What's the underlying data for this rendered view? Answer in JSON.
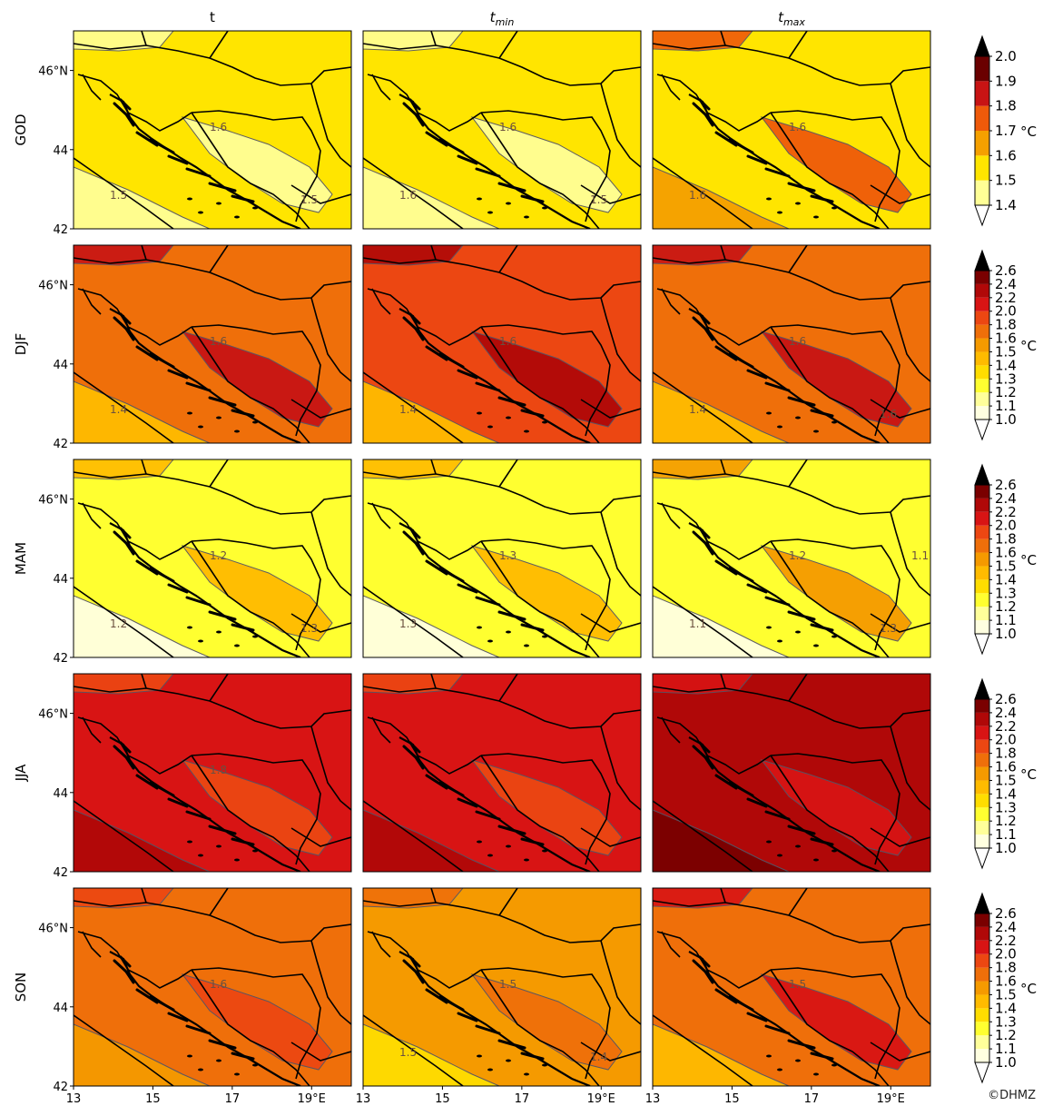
{
  "columns": [
    {
      "id": "t",
      "label": "t",
      "sub": ""
    },
    {
      "id": "tmin",
      "label": "t",
      "sub": "min"
    },
    {
      "id": "tmax",
      "label": "t",
      "sub": "max"
    }
  ],
  "rows": [
    {
      "id": "GOD",
      "label": "GOD",
      "colorbar": [
        "1.4",
        "1.5",
        "1.6",
        "1.7",
        "1.8",
        "1.9",
        "2.0"
      ]
    },
    {
      "id": "DJF",
      "label": "DJF",
      "colorbar": [
        "1.0",
        "1.1",
        "1.2",
        "1.3",
        "1.4",
        "1.5",
        "1.6",
        "1.8",
        "2.0",
        "2.2",
        "2.4",
        "2.6"
      ]
    },
    {
      "id": "MAM",
      "label": "MAM",
      "colorbar": [
        "1.0",
        "1.1",
        "1.2",
        "1.3",
        "1.4",
        "1.5",
        "1.6",
        "1.8",
        "2.0",
        "2.2",
        "2.4",
        "2.6"
      ]
    },
    {
      "id": "JJA",
      "label": "JJA",
      "colorbar": [
        "1.0",
        "1.1",
        "1.2",
        "1.3",
        "1.4",
        "1.5",
        "1.6",
        "1.8",
        "2.0",
        "2.2",
        "2.4",
        "2.6"
      ]
    },
    {
      "id": "SON",
      "label": "SON",
      "colorbar": [
        "1.0",
        "1.1",
        "1.2",
        "1.3",
        "1.4",
        "1.5",
        "1.6",
        "1.8",
        "2.0",
        "2.2",
        "2.4",
        "2.6"
      ]
    }
  ],
  "colorbar_colors": {
    "GOD": [
      "#ffff96",
      "#ffe500",
      "#f5a000",
      "#ef5a0a",
      "#c81414",
      "#6a0000"
    ],
    "DJF": [
      "#ffffe0",
      "#ffff9a",
      "#ffff30",
      "#ffdd00",
      "#ffbb00",
      "#f59a00",
      "#ef6f0a",
      "#ec4712",
      "#d81414",
      "#b00808",
      "#7a0000"
    ]
  },
  "unit": "°C",
  "lat_ticks": [
    "46°N",
    "44",
    "42"
  ],
  "lon_ticks": [
    "13",
    "15",
    "17",
    "19°E"
  ],
  "map_fill_colors": {
    "GOD": [
      "#ffe500",
      "#ffe500",
      "#ffe500"
    ],
    "DJF": [
      "#ef6f0a",
      "#ec4712",
      "#ef6f0a"
    ],
    "MAM": [
      "#ffff30",
      "#ffff30",
      "#ffff30"
    ],
    "JJA": [
      "#d81414",
      "#d81414",
      "#b00808"
    ],
    "SON": [
      "#ef6f0a",
      "#f59a00",
      "#ef6f0a"
    ]
  },
  "contour_labels": {
    "GOD": [
      [
        "1.6",
        "1.5",
        "1.5"
      ],
      [
        "1.6",
        "1.6",
        "1.5"
      ],
      [
        "1.6",
        "1.6"
      ]
    ],
    "DJF": [
      [
        "1.6",
        "1.4"
      ],
      [
        "1.6",
        "1.4"
      ],
      [
        "1.6",
        "1.4",
        "1.6"
      ]
    ],
    "MAM": [
      [
        "1.2",
        "1.2",
        "1.3"
      ],
      [
        "1.3",
        "1.3"
      ],
      [
        "1.2",
        "1.1",
        "1.3",
        "1.1"
      ]
    ],
    "JJA": [
      [
        "1.8"
      ],
      [],
      []
    ],
    "SON": [
      [
        "1.6"
      ],
      [
        "1.5",
        "1.5",
        "1.4"
      ],
      [
        "1.5"
      ]
    ]
  },
  "credit": "©DHMZ"
}
